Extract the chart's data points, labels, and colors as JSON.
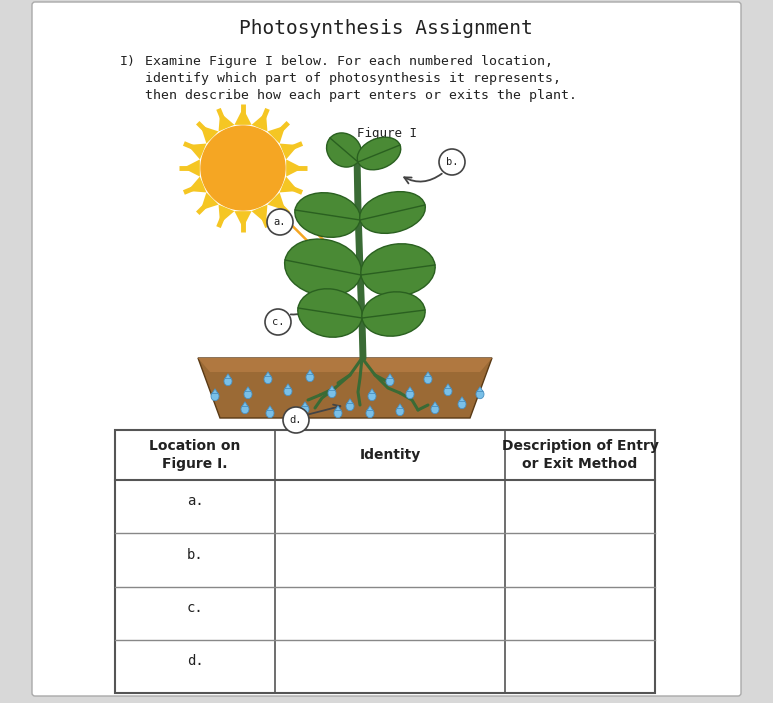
{
  "title": "Photosynthesis Assignment",
  "instruction_num": "I)",
  "instruction_line1": "Examine Figure I below. For each numbered location,",
  "instruction_line2": "identify which part of photosynthesis it represents,",
  "instruction_line3": "then describe how each part enters or exits the plant.",
  "figure_label": "Figure I",
  "col1_header": "Location on\nFigure I.",
  "col2_header": "Identity",
  "col3_header": "Description of Entry\nor Exit Method",
  "rows": [
    "a.",
    "b.",
    "c.",
    "d."
  ],
  "font_color": "#222222",
  "title_fontsize": 14,
  "body_fontsize": 9.5,
  "table_fontsize": 10,
  "sun_color": "#F5A623",
  "sun_ray_color": "#F5C623",
  "soil_color": "#9B6A35",
  "soil_dark": "#7A5025",
  "stem_color": "#3A6B35",
  "leaf_color": "#4A8A35",
  "leaf_edge": "#2A6020",
  "root_color": "#3A6B35",
  "water_color": "#7AC0E8",
  "water_edge": "#4A90C0",
  "arrow_color": "#444444",
  "page_gray": "#d8d8d8"
}
